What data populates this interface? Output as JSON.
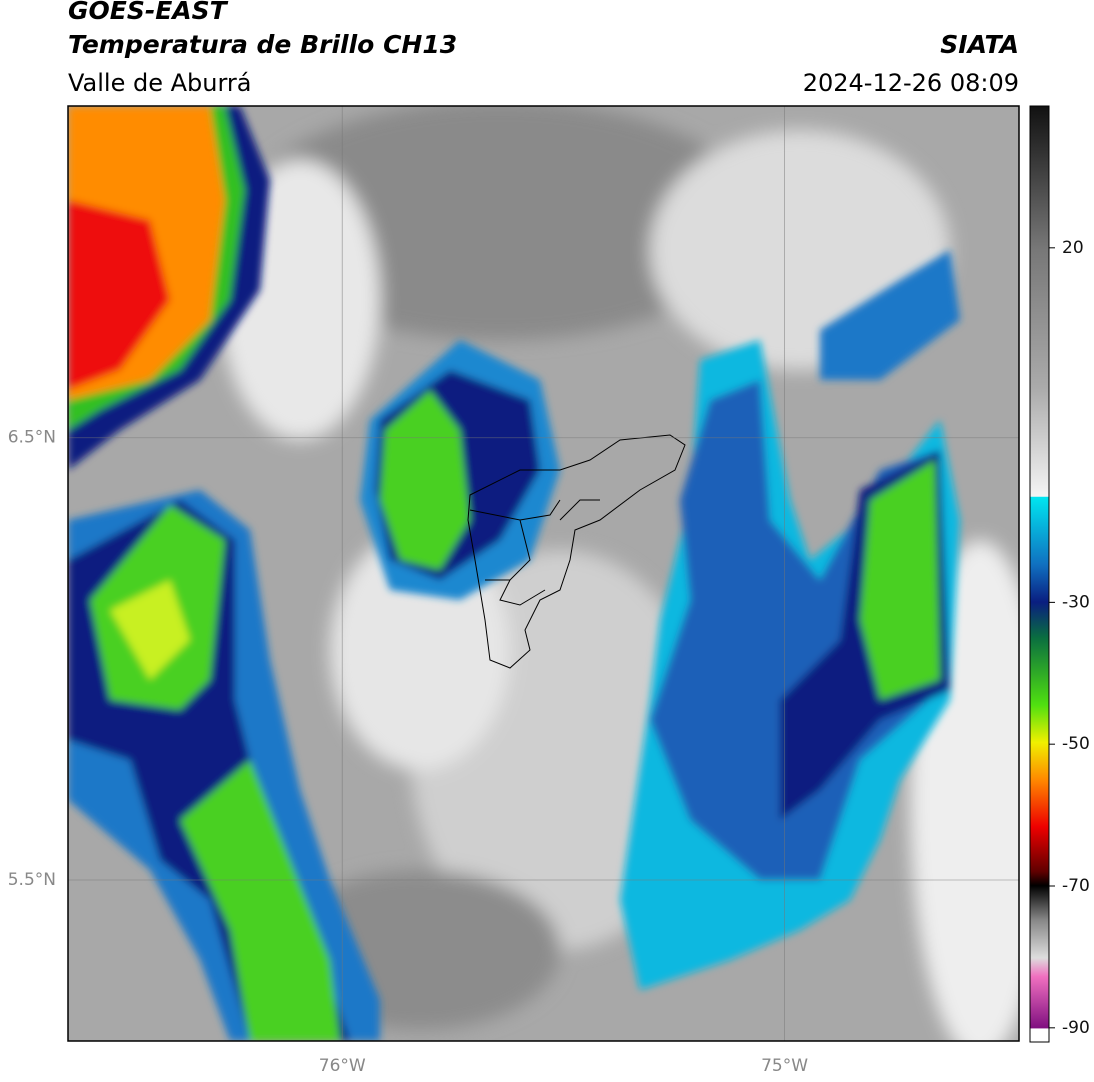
{
  "header": {
    "title": "GOES-EAST",
    "subtitle": "Temperatura de Brillo CH13",
    "region": "Valle de Aburrá",
    "source": "SIATA",
    "datetime": "2024-12-26 08:09"
  },
  "map": {
    "latlim": [
      5.136,
      7.25
    ],
    "lonlim": [
      -76.62,
      -74.47
    ],
    "lat_ticks": [
      {
        "value": 6.5,
        "label": "6.5°N"
      },
      {
        "value": 5.5,
        "label": "5.5°N"
      }
    ],
    "lon_ticks": [
      {
        "value": -76,
        "label": "76°W"
      },
      {
        "value": -75,
        "label": "75°W"
      }
    ],
    "grid": true
  },
  "colorbar": {
    "lim": [
      -92,
      40
    ],
    "ticks": [
      20,
      -30,
      -50,
      -70,
      -90
    ]
  }
}
